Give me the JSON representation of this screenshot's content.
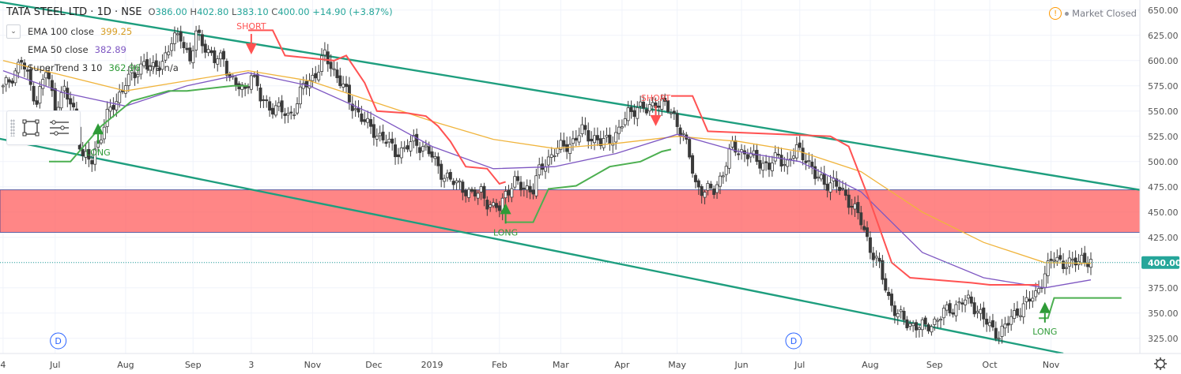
{
  "header": {
    "symbol": "TATA STEEL LTD · 1D · NSE",
    "open_label": "O",
    "open": "386.00",
    "high_label": "H",
    "high": "402.80",
    "low_label": "L",
    "low": "383.10",
    "close_label": "C",
    "close": "400.00",
    "change": "+14.90 (+3.87%)"
  },
  "indicators": [
    {
      "label": "EMA 100 close",
      "value": "399.25",
      "color": "#f0b43c"
    },
    {
      "label": "EMA 50 close",
      "value": "382.89",
      "color": "#7e57c2"
    },
    {
      "label": "SuperTrend 3 10",
      "value": "362.96",
      "extra": "n/a  n/a",
      "color": "#4caf50"
    }
  ],
  "market_status": "Market Closed",
  "chart_data": {
    "type": "candlestick",
    "x_labels": [
      {
        "label": "4",
        "x": 0
      },
      {
        "label": "Jul",
        "x": 17
      },
      {
        "label": "Aug",
        "x": 40
      },
      {
        "label": "Sep",
        "x": 62
      },
      {
        "label": "3",
        "x": 81
      },
      {
        "label": "Nov",
        "x": 101
      },
      {
        "label": "Dec",
        "x": 121
      },
      {
        "label": "2019",
        "x": 140
      },
      {
        "label": "Feb",
        "x": 162
      },
      {
        "label": "Mar",
        "x": 182
      },
      {
        "label": "Apr",
        "x": 202
      },
      {
        "label": "May",
        "x": 220
      },
      {
        "label": "Jun",
        "x": 241
      },
      {
        "label": "Jul",
        "x": 260
      },
      {
        "label": "Aug",
        "x": 283
      },
      {
        "label": "Sep",
        "x": 304
      },
      {
        "label": "Oct",
        "x": 322
      },
      {
        "label": "Nov",
        "x": 342
      }
    ],
    "y_ticks": [
      325,
      350,
      375,
      400,
      425,
      450,
      475,
      500,
      525,
      550,
      575,
      600,
      625,
      650
    ],
    "y_range": [
      310,
      660
    ],
    "x_range": [
      -1,
      371
    ],
    "current_price": 400.0,
    "current_price_label": "400.00",
    "close_points": [
      [
        0,
        572
      ],
      [
        3,
        585
      ],
      [
        6,
        600
      ],
      [
        9,
        575
      ],
      [
        11,
        560
      ],
      [
        14,
        590
      ],
      [
        17,
        555
      ],
      [
        20,
        570
      ],
      [
        23,
        550
      ],
      [
        26,
        505
      ],
      [
        29,
        500
      ],
      [
        31,
        520
      ],
      [
        34,
        545
      ],
      [
        37,
        560
      ],
      [
        40,
        580
      ],
      [
        43,
        585
      ],
      [
        46,
        600
      ],
      [
        49,
        590
      ],
      [
        52,
        600
      ],
      [
        55,
        618
      ],
      [
        58,
        625
      ],
      [
        61,
        600
      ],
      [
        63,
        625
      ],
      [
        66,
        615
      ],
      [
        69,
        600
      ],
      [
        72,
        602
      ],
      [
        74,
        585
      ],
      [
        76,
        575
      ],
      [
        79,
        570
      ],
      [
        81,
        590
      ],
      [
        84,
        562
      ],
      [
        87,
        555
      ],
      [
        90,
        552
      ],
      [
        93,
        545
      ],
      [
        96,
        558
      ],
      [
        98,
        575
      ],
      [
        100,
        580
      ],
      [
        103,
        592
      ],
      [
        105,
        605
      ],
      [
        108,
        590
      ],
      [
        110,
        580
      ],
      [
        113,
        560
      ],
      [
        116,
        548
      ],
      [
        119,
        535
      ],
      [
        122,
        528
      ],
      [
        125,
        520
      ],
      [
        128,
        510
      ],
      [
        131,
        512
      ],
      [
        134,
        520
      ],
      [
        137,
        515
      ],
      [
        140,
        505
      ],
      [
        143,
        490
      ],
      [
        146,
        480
      ],
      [
        149,
        478
      ],
      [
        151,
        472
      ],
      [
        153,
        465
      ],
      [
        156,
        472
      ],
      [
        158,
        460
      ],
      [
        160,
        452
      ],
      [
        162,
        455
      ],
      [
        164,
        470
      ],
      [
        167,
        478
      ],
      [
        170,
        475
      ],
      [
        173,
        472
      ],
      [
        175,
        490
      ],
      [
        177,
        500
      ],
      [
        180,
        510
      ],
      [
        183,
        515
      ],
      [
        186,
        520
      ],
      [
        189,
        530
      ],
      [
        192,
        525
      ],
      [
        195,
        518
      ],
      [
        198,
        522
      ],
      [
        201,
        530
      ],
      [
        204,
        548
      ],
      [
        207,
        555
      ],
      [
        210,
        550
      ],
      [
        213,
        560
      ],
      [
        216,
        555
      ],
      [
        219,
        545
      ],
      [
        222,
        525
      ],
      [
        224,
        505
      ],
      [
        226,
        478
      ],
      [
        229,
        470
      ],
      [
        232,
        472
      ],
      [
        235,
        490
      ],
      [
        238,
        515
      ],
      [
        241,
        510
      ],
      [
        244,
        505
      ],
      [
        247,
        500
      ],
      [
        250,
        495
      ],
      [
        253,
        505
      ],
      [
        256,
        498
      ],
      [
        259,
        512
      ],
      [
        262,
        505
      ],
      [
        265,
        485
      ],
      [
        268,
        480
      ],
      [
        271,
        478
      ],
      [
        274,
        470
      ],
      [
        277,
        458
      ],
      [
        280,
        440
      ],
      [
        283,
        415
      ],
      [
        286,
        395
      ],
      [
        289,
        365
      ],
      [
        292,
        348
      ],
      [
        295,
        340
      ],
      [
        298,
        338
      ],
      [
        301,
        335
      ],
      [
        304,
        342
      ],
      [
        307,
        350
      ],
      [
        310,
        355
      ],
      [
        313,
        362
      ],
      [
        316,
        360
      ],
      [
        319,
        350
      ],
      [
        322,
        335
      ],
      [
        325,
        330
      ],
      [
        328,
        340
      ],
      [
        331,
        352
      ],
      [
        334,
        360
      ],
      [
        337,
        368
      ],
      [
        340,
        390
      ],
      [
        343,
        405
      ],
      [
        346,
        400
      ],
      [
        349,
        398
      ],
      [
        352,
        405
      ],
      [
        355,
        400
      ]
    ],
    "ema100": [
      [
        0,
        600
      ],
      [
        20,
        585
      ],
      [
        40,
        570
      ],
      [
        60,
        580
      ],
      [
        80,
        590
      ],
      [
        100,
        580
      ],
      [
        120,
        560
      ],
      [
        140,
        540
      ],
      [
        160,
        522
      ],
      [
        180,
        513
      ],
      [
        200,
        518
      ],
      [
        220,
        525
      ],
      [
        240,
        520
      ],
      [
        260,
        510
      ],
      [
        280,
        490
      ],
      [
        300,
        450
      ],
      [
        320,
        420
      ],
      [
        340,
        400
      ],
      [
        355,
        399.25
      ]
    ],
    "ema50": [
      [
        0,
        590
      ],
      [
        20,
        568
      ],
      [
        40,
        555
      ],
      [
        60,
        575
      ],
      [
        80,
        588
      ],
      [
        100,
        575
      ],
      [
        120,
        548
      ],
      [
        140,
        515
      ],
      [
        160,
        493
      ],
      [
        180,
        495
      ],
      [
        200,
        508
      ],
      [
        220,
        527
      ],
      [
        240,
        510
      ],
      [
        260,
        500
      ],
      [
        280,
        470
      ],
      [
        300,
        410
      ],
      [
        320,
        385
      ],
      [
        340,
        375
      ],
      [
        355,
        382.89
      ]
    ],
    "supertrend_up": [
      [
        15,
        500
      ],
      [
        22,
        500
      ],
      [
        32,
        535
      ],
      [
        42,
        560
      ],
      [
        54,
        570
      ],
      [
        60,
        570
      ],
      [
        75,
        575
      ],
      [
        80,
        575
      ]
    ],
    "supertrend_down_1": [
      [
        80,
        630
      ],
      [
        88,
        630
      ],
      [
        92,
        605
      ],
      [
        108,
        600
      ],
      [
        112,
        605
      ],
      [
        118,
        578
      ],
      [
        122,
        550
      ],
      [
        132,
        548
      ],
      [
        138,
        545
      ],
      [
        142,
        535
      ],
      [
        146,
        520
      ],
      [
        151,
        495
      ],
      [
        158,
        493
      ],
      [
        162,
        478
      ],
      [
        164,
        480
      ]
    ],
    "supertrend_up_2": [
      [
        164,
        440
      ],
      [
        173,
        440
      ],
      [
        178,
        473
      ],
      [
        187,
        476
      ],
      [
        198,
        495
      ],
      [
        208,
        500
      ],
      [
        215,
        510
      ],
      [
        218,
        512
      ]
    ],
    "supertrend_down_2": [
      [
        218,
        565
      ],
      [
        225,
        565
      ],
      [
        230,
        530
      ],
      [
        270,
        525
      ],
      [
        276,
        515
      ],
      [
        283,
        460
      ],
      [
        290,
        400
      ],
      [
        296,
        385
      ],
      [
        316,
        380
      ],
      [
        322,
        378
      ],
      [
        338,
        378
      ]
    ],
    "supertrend_up_3": [
      [
        338,
        345
      ],
      [
        341,
        345
      ],
      [
        343,
        365
      ],
      [
        365,
        365
      ]
    ],
    "channel": [
      {
        "from": [
          -5,
          660
        ],
        "to": [
          375,
          470
        ]
      },
      {
        "from": [
          -5,
          525
        ],
        "to": [
          346,
          310
        ]
      }
    ],
    "zone": [
      430,
      472
    ],
    "signals": [
      {
        "type": "LONG",
        "x": 31,
        "y": 527
      },
      {
        "type": "SHORT",
        "x": 81,
        "y": 617
      },
      {
        "type": "LONG",
        "x": 164,
        "y": 448
      },
      {
        "type": "SHORT",
        "x": 213,
        "y": 546
      },
      {
        "type": "LONG",
        "x": 340,
        "y": 350
      }
    ],
    "events": [
      {
        "label": "D",
        "x": 18
      },
      {
        "label": "D",
        "x": 258
      }
    ]
  }
}
